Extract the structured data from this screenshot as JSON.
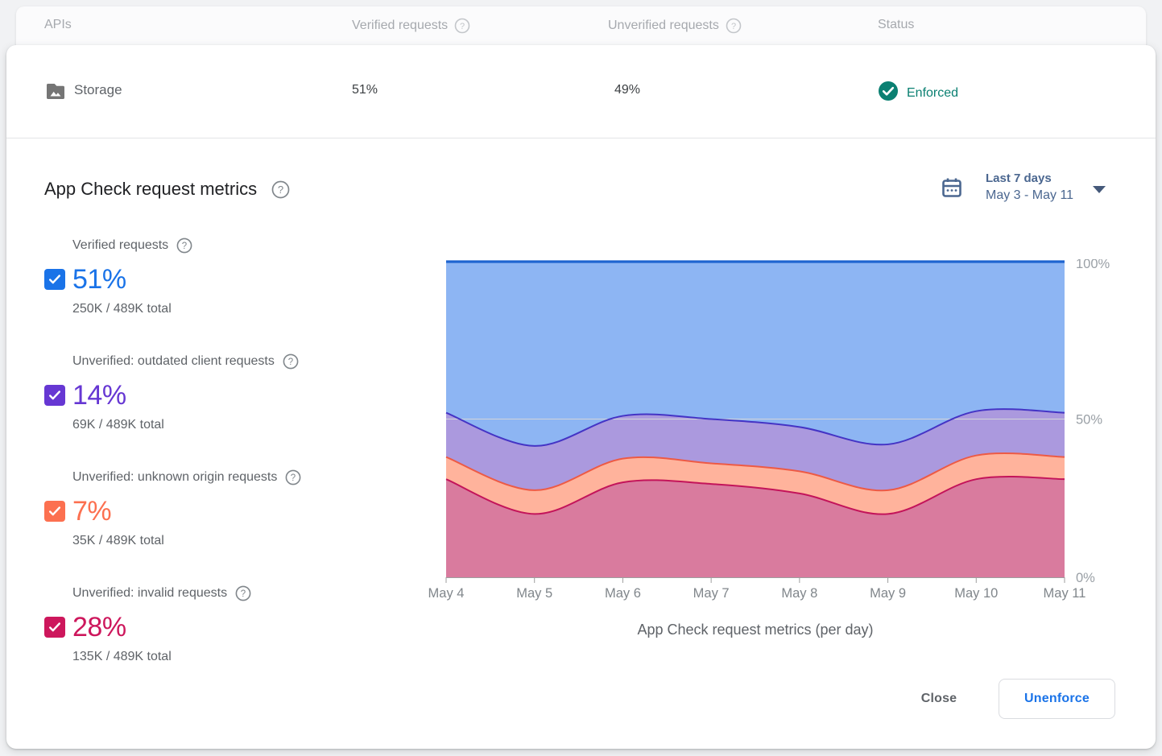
{
  "table": {
    "headers": [
      "APIs",
      "Verified requests",
      "Unverified requests",
      "Status"
    ],
    "row": {
      "api": "Storage",
      "verified": "51%",
      "unverified": "49%",
      "status": "Enforced",
      "status_color": "#0b8072"
    }
  },
  "metrics": {
    "title": "App Check request metrics",
    "date_picker": {
      "label": "Last 7 days",
      "range": "May 3 - May 11"
    },
    "legend": [
      {
        "label": "Verified requests",
        "percent": "51%",
        "detail": "250K / 489K total",
        "color": "#1a73e8"
      },
      {
        "label": "Unverified: outdated client requests",
        "percent": "14%",
        "detail": "69K / 489K total",
        "color": "#6637d3"
      },
      {
        "label": "Unverified: unknown origin requests",
        "percent": "7%",
        "detail": "35K / 489K total",
        "color": "#fc7050"
      },
      {
        "label": "Unverified: invalid requests",
        "percent": "28%",
        "detail": "135K / 489K total",
        "color": "#cd175c"
      }
    ]
  },
  "chart_data": {
    "type": "area",
    "stacked": true,
    "title": "App Check request metrics (per day)",
    "caption": "App Check request metrics (per day)",
    "categories": [
      "May 4",
      "May 5",
      "May 6",
      "May 7",
      "May 8",
      "May 9",
      "May 10",
      "May 11"
    ],
    "series": [
      {
        "name": "Unverified: invalid requests",
        "fill": "#d97b9e",
        "line": "#c3145a",
        "values": [
          31,
          20,
          30,
          29.5,
          26.5,
          20,
          31,
          31
        ]
      },
      {
        "name": "Unverified: unknown origin requests",
        "fill": "#ffb39c",
        "line": "#ed5a45",
        "values": [
          7,
          7.5,
          7.5,
          6.5,
          7,
          7.5,
          7.5,
          7
        ]
      },
      {
        "name": "Unverified: outdated client requests",
        "fill": "#ab99de",
        "line": "#4434c5",
        "values": [
          14,
          14,
          13.5,
          14,
          14,
          14.5,
          14,
          14
        ]
      },
      {
        "name": "Verified requests",
        "fill": "#8db5f3",
        "line": "#1e64d0",
        "values": [
          48,
          58.5,
          49,
          50,
          52.5,
          58,
          47.5,
          48
        ]
      }
    ],
    "ylabels": [
      "100%",
      "50%",
      "0%"
    ],
    "ylim": [
      0,
      100
    ],
    "xlabel": "",
    "ylabel": "",
    "grid": "horizontal line at 50% only",
    "legend_position": "left"
  },
  "footer": {
    "close_label": "Close",
    "unenforce_label": "Unenforce"
  }
}
